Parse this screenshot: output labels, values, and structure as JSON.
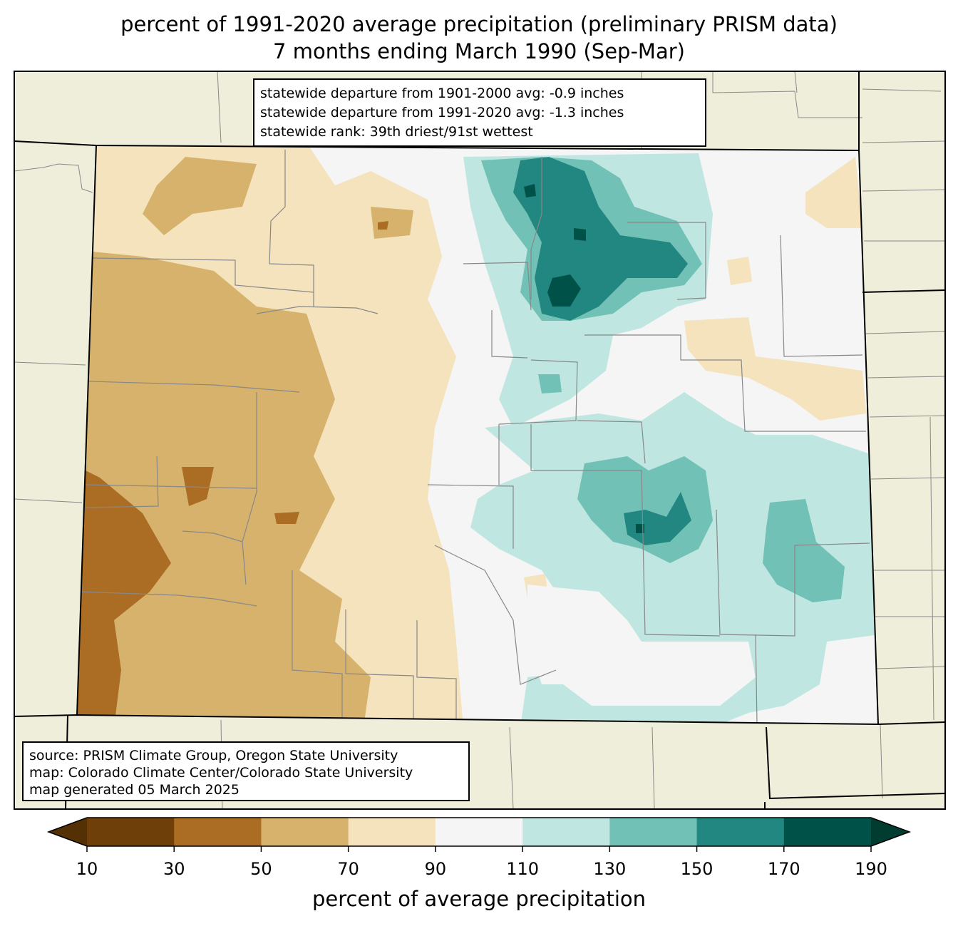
{
  "title": {
    "line1": "percent of 1991-2020 average precipitation (preliminary PRISM data)",
    "line2": "7 months ending March 1990 (Sep-Mar)"
  },
  "stats": {
    "line1": "statewide departure from 1901-2000 avg: -0.9 inches",
    "line2": "statewide departure from 1991-2020 avg: -1.3 inches",
    "line3": "statewide rank: 39th driest/91st wettest"
  },
  "source": {
    "line1": "source: PRISM Climate Group, Oregon State University",
    "line2": "map: Colorado Climate Center/Colorado State University",
    "line3": "map generated 05 March 2025"
  },
  "colorbar": {
    "label": "percent of average precipitation",
    "ticks": [
      "10",
      "30",
      "50",
      "70",
      "90",
      "110",
      "130",
      "150",
      "170",
      "190"
    ],
    "colors": {
      "under": "#543005",
      "c10_30": "#6f3f0a",
      "c30_50": "#aa6d23",
      "c50_70": "#d7b26d",
      "c70_90": "#f4e3bd",
      "c90_110": "#f4f5f4",
      "c110_130": "#bfe6e1",
      "c130_150": "#71c1b6",
      "c150_170": "#228780",
      "c170_190": "#005248",
      "over": "#003c30"
    }
  },
  "map": {
    "background_color": "#efeedb",
    "county_line_color": "#888888"
  }
}
